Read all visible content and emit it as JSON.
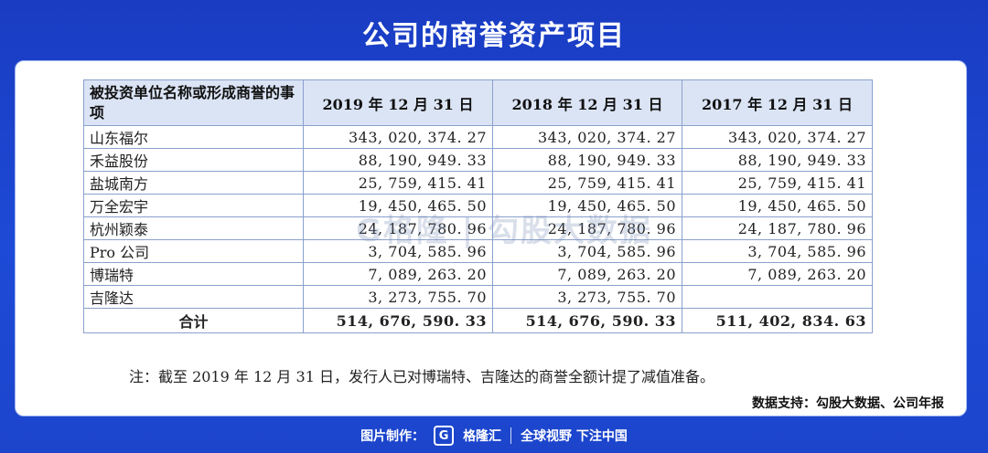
{
  "title": "公司的商誉资产项目",
  "table": {
    "headers": [
      "被投资单位名称或形成商誉的事项",
      "2019 年 12 月 31 日",
      "2018 年 12 月 31 日",
      "2017 年 12 月 31 日"
    ],
    "rows": [
      [
        "山东福尔",
        "343, 020, 374. 27",
        "343, 020, 374. 27",
        "343, 020, 374. 27"
      ],
      [
        "禾益股份",
        "88, 190, 949. 33",
        "88, 190, 949. 33",
        "88, 190, 949. 33"
      ],
      [
        "盐城南方",
        "25, 759, 415. 41",
        "25, 759, 415. 41",
        "25, 759, 415. 41"
      ],
      [
        "万全宏宇",
        "19, 450, 465. 50",
        "19, 450, 465. 50",
        "19, 450, 465. 50"
      ],
      [
        "杭州颖泰",
        "24, 187, 780. 96",
        "24, 187, 780. 96",
        "24, 187, 780. 96"
      ],
      [
        "Pro 公司",
        "3, 704, 585. 96",
        "3, 704, 585. 96",
        "3, 704, 585. 96"
      ],
      [
        "博瑞特",
        "7, 089, 263. 20",
        "7, 089, 263. 20",
        "7, 089, 263. 20"
      ],
      [
        "吉隆达",
        "3, 273, 755. 70",
        "3, 273, 755. 70",
        ""
      ]
    ],
    "total": [
      "合计",
      "514, 676, 590. 33",
      "514, 676, 590. 33",
      "511, 402, 834. 63"
    ]
  },
  "watermark": "G格隆 | 勾股大数据",
  "note": "注：截至 2019 年 12 月 31 日，发行人已对博瑞特、吉隆达的商誉全额计提了减值准备。",
  "source": "数据支持：勾股大数据、公司年报",
  "footer": {
    "made_by": "图片制作：",
    "logo_letter": "G",
    "brand": "格隆汇",
    "slogan": "全球视野 下注中国"
  }
}
